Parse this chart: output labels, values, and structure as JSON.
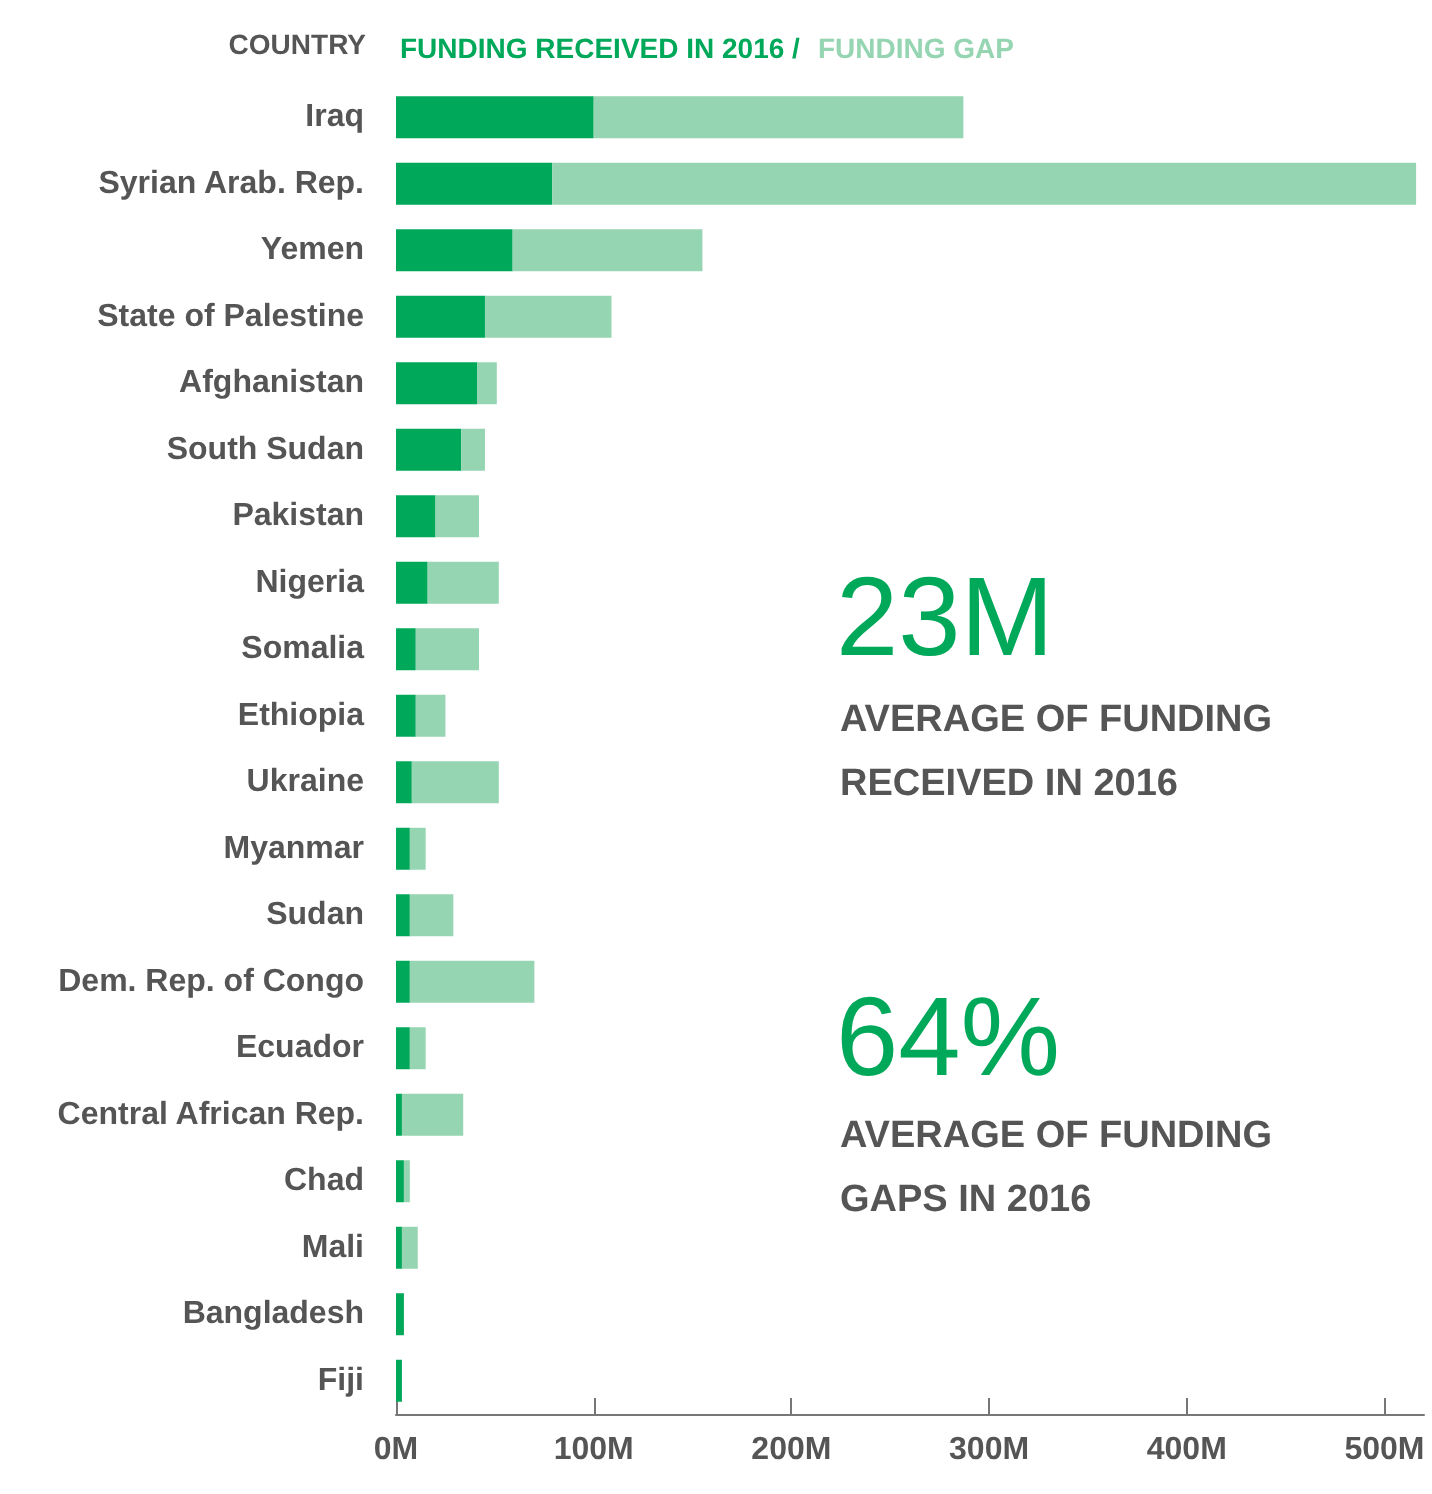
{
  "chart_data": {
    "type": "bar",
    "orientation": "horizontal",
    "stacked": true,
    "ylabel": "COUNTRY",
    "legend": "top",
    "categories": [
      "Iraq",
      "Syrian Arab. Rep.",
      "Yemen",
      "State of Palestine",
      "Afghanistan",
      "South Sudan",
      "Pakistan",
      "Nigeria",
      "Somalia",
      "Ethiopia",
      "Ukraine",
      "Myanmar",
      "Sudan",
      "Dem. Rep. of Congo",
      "Ecuador",
      "Central African Rep.",
      "Chad",
      "Mali",
      "Bangladesh",
      "Fiji"
    ],
    "series": [
      {
        "name": "FUNDING RECEIVED IN 2016",
        "color": "#00a85a",
        "values": [
          100,
          79,
          59,
          45,
          41,
          33,
          20,
          16,
          10,
          10,
          8,
          7,
          7,
          7,
          7,
          3,
          4,
          3,
          4,
          3
        ]
      },
      {
        "name": "FUNDING GAP",
        "color": "#96d5b2",
        "values": [
          187,
          437,
          96,
          64,
          10,
          12,
          22,
          36,
          32,
          15,
          44,
          8,
          22,
          63,
          8,
          31,
          3,
          8,
          0,
          0
        ]
      }
    ],
    "xlim": [
      0,
      520
    ],
    "xticks": [
      {
        "value": 0,
        "label": "0M"
      },
      {
        "value": 100,
        "label": "100M"
      },
      {
        "value": 200,
        "label": "200M"
      },
      {
        "value": 300,
        "label": "300M"
      },
      {
        "value": 400,
        "label": "400M"
      },
      {
        "value": 500,
        "label": "500M"
      }
    ],
    "grid": false,
    "annotations": [
      "/",
      "23M",
      "AVERAGE OF FUNDING\nRECEIVED IN 2016",
      "64%",
      "AVERAGE OF FUNDING\nGAPS IN 2016"
    ]
  }
}
